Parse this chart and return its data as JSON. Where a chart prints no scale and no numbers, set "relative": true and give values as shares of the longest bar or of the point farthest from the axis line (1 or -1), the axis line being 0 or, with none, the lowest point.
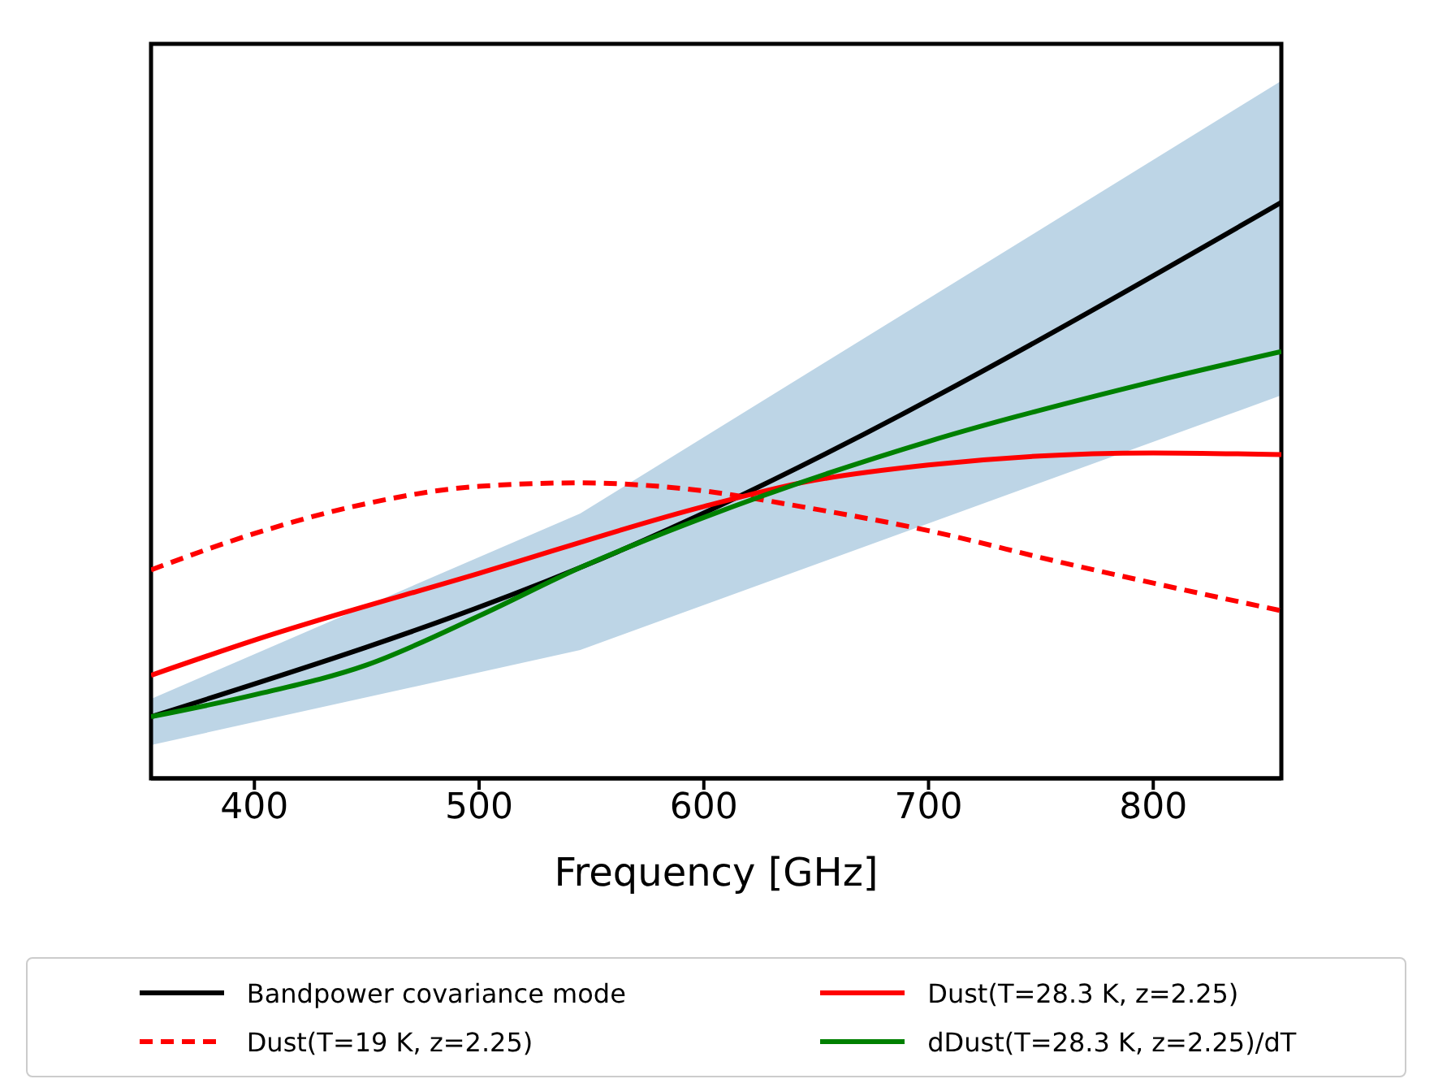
{
  "chart_data": {
    "type": "line",
    "xlabel": "Frequency [GHz]",
    "relative": true,
    "xlim": [
      354,
      857
    ],
    "xticks": [
      400,
      500,
      600,
      700,
      800
    ],
    "legend": "bottom",
    "series": [
      {
        "name": "Bandpower covariance mode",
        "color": "#000000",
        "x": [
          354,
          545,
          857
        ],
        "values": [
          0.107,
          0.366,
          1
        ],
        "lower": [
          0.058,
          0.223,
          0.665
        ],
        "upper": [
          0.138,
          0.46,
          1.211
        ]
      },
      {
        "name": "Dust(T=19 K, z=2.25)",
        "color": "#ff0000",
        "line_style": "dashed",
        "x": [
          354,
          400,
          444,
          500,
          545,
          600,
          643,
          700,
          759,
          800,
          857
        ],
        "values": [
          0.362,
          0.425,
          0.472,
          0.507,
          0.513,
          0.499,
          0.472,
          0.43,
          0.375,
          0.339,
          0.291
        ]
      },
      {
        "name": "Dust(T=28.3 K, z=2.25)",
        "color": "#ff0000",
        "x": [
          354,
          400,
          500,
          600,
          643,
          700,
          800,
          857
        ],
        "values": [
          0.179,
          0.24,
          0.356,
          0.472,
          0.513,
          0.544,
          0.565,
          0.562
        ]
      },
      {
        "name": "dDust(T=28.3 K, z=2.25)/dT",
        "color": "#008000",
        "x": [
          354,
          400,
          450,
          500,
          545,
          600,
          700,
          800,
          857
        ],
        "values": [
          0.107,
          0.145,
          0.197,
          0.282,
          0.366,
          0.453,
          0.585,
          0.689,
          0.741
        ]
      }
    ]
  }
}
